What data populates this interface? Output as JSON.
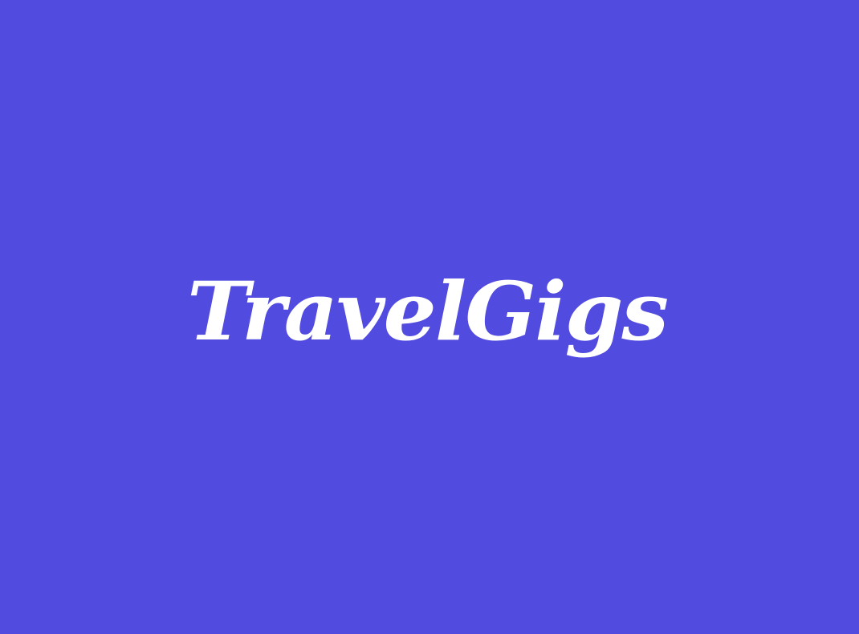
{
  "splash": {
    "background_color": "#514BE0",
    "logo": {
      "text": "TravelGigs",
      "color": "#FFFFFF"
    }
  }
}
